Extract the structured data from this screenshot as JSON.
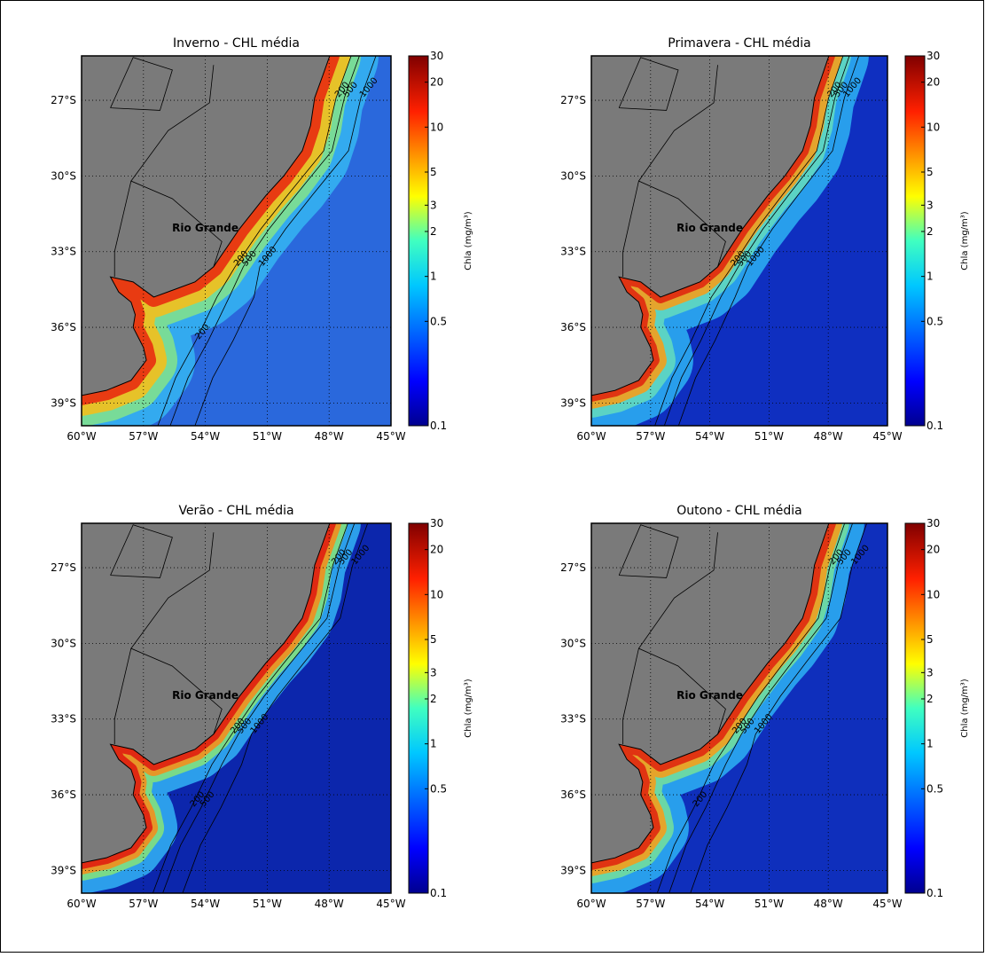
{
  "panels": [
    {
      "title": "Inverno - CHL média",
      "place_label": "Rio Grande",
      "colorbar_label": "Chla (mg/m³)",
      "contour_labels": [
        200,
        500,
        1000,
        200,
        500,
        1000,
        200
      ]
    },
    {
      "title": "Primavera - CHL média",
      "place_label": "Rio Grande",
      "colorbar_label": "Chla (mg/m³)",
      "contour_labels": [
        200,
        500,
        1000,
        200,
        500,
        1000
      ]
    },
    {
      "title": "Verão - CHL média",
      "place_label": "Rio Grande",
      "colorbar_label": "Chla (mg/m³)",
      "contour_labels": [
        200,
        500,
        1000,
        200,
        500,
        1000,
        200,
        500
      ]
    },
    {
      "title": "Outono - CHL média",
      "place_label": "Rio Grande",
      "colorbar_label": "Chla (mg/m³)",
      "contour_labels": [
        200,
        500,
        1000,
        200,
        500,
        1000,
        200
      ]
    }
  ],
  "lon_range": [
    -60,
    -45
  ],
  "lat_range": [
    -39.9,
    -25.24
  ],
  "xticks": [
    {
      "value": -60,
      "label": "60°W"
    },
    {
      "value": -57,
      "label": "57°W"
    },
    {
      "value": -54,
      "label": "54°W"
    },
    {
      "value": -51,
      "label": "51°W"
    },
    {
      "value": -48,
      "label": "48°W"
    },
    {
      "value": -45,
      "label": "45°W"
    }
  ],
  "yticks": [
    {
      "value": -27,
      "label": "27°S"
    },
    {
      "value": -30,
      "label": "30°S"
    },
    {
      "value": -33,
      "label": "33°S"
    },
    {
      "value": -36,
      "label": "36°S"
    },
    {
      "value": -39,
      "label": "39°S"
    }
  ],
  "colorbar": {
    "range": [
      0.1,
      30
    ],
    "ticks": [
      0.1,
      0.5,
      1,
      2,
      3,
      5,
      10,
      20,
      30
    ],
    "scale": "log"
  }
}
